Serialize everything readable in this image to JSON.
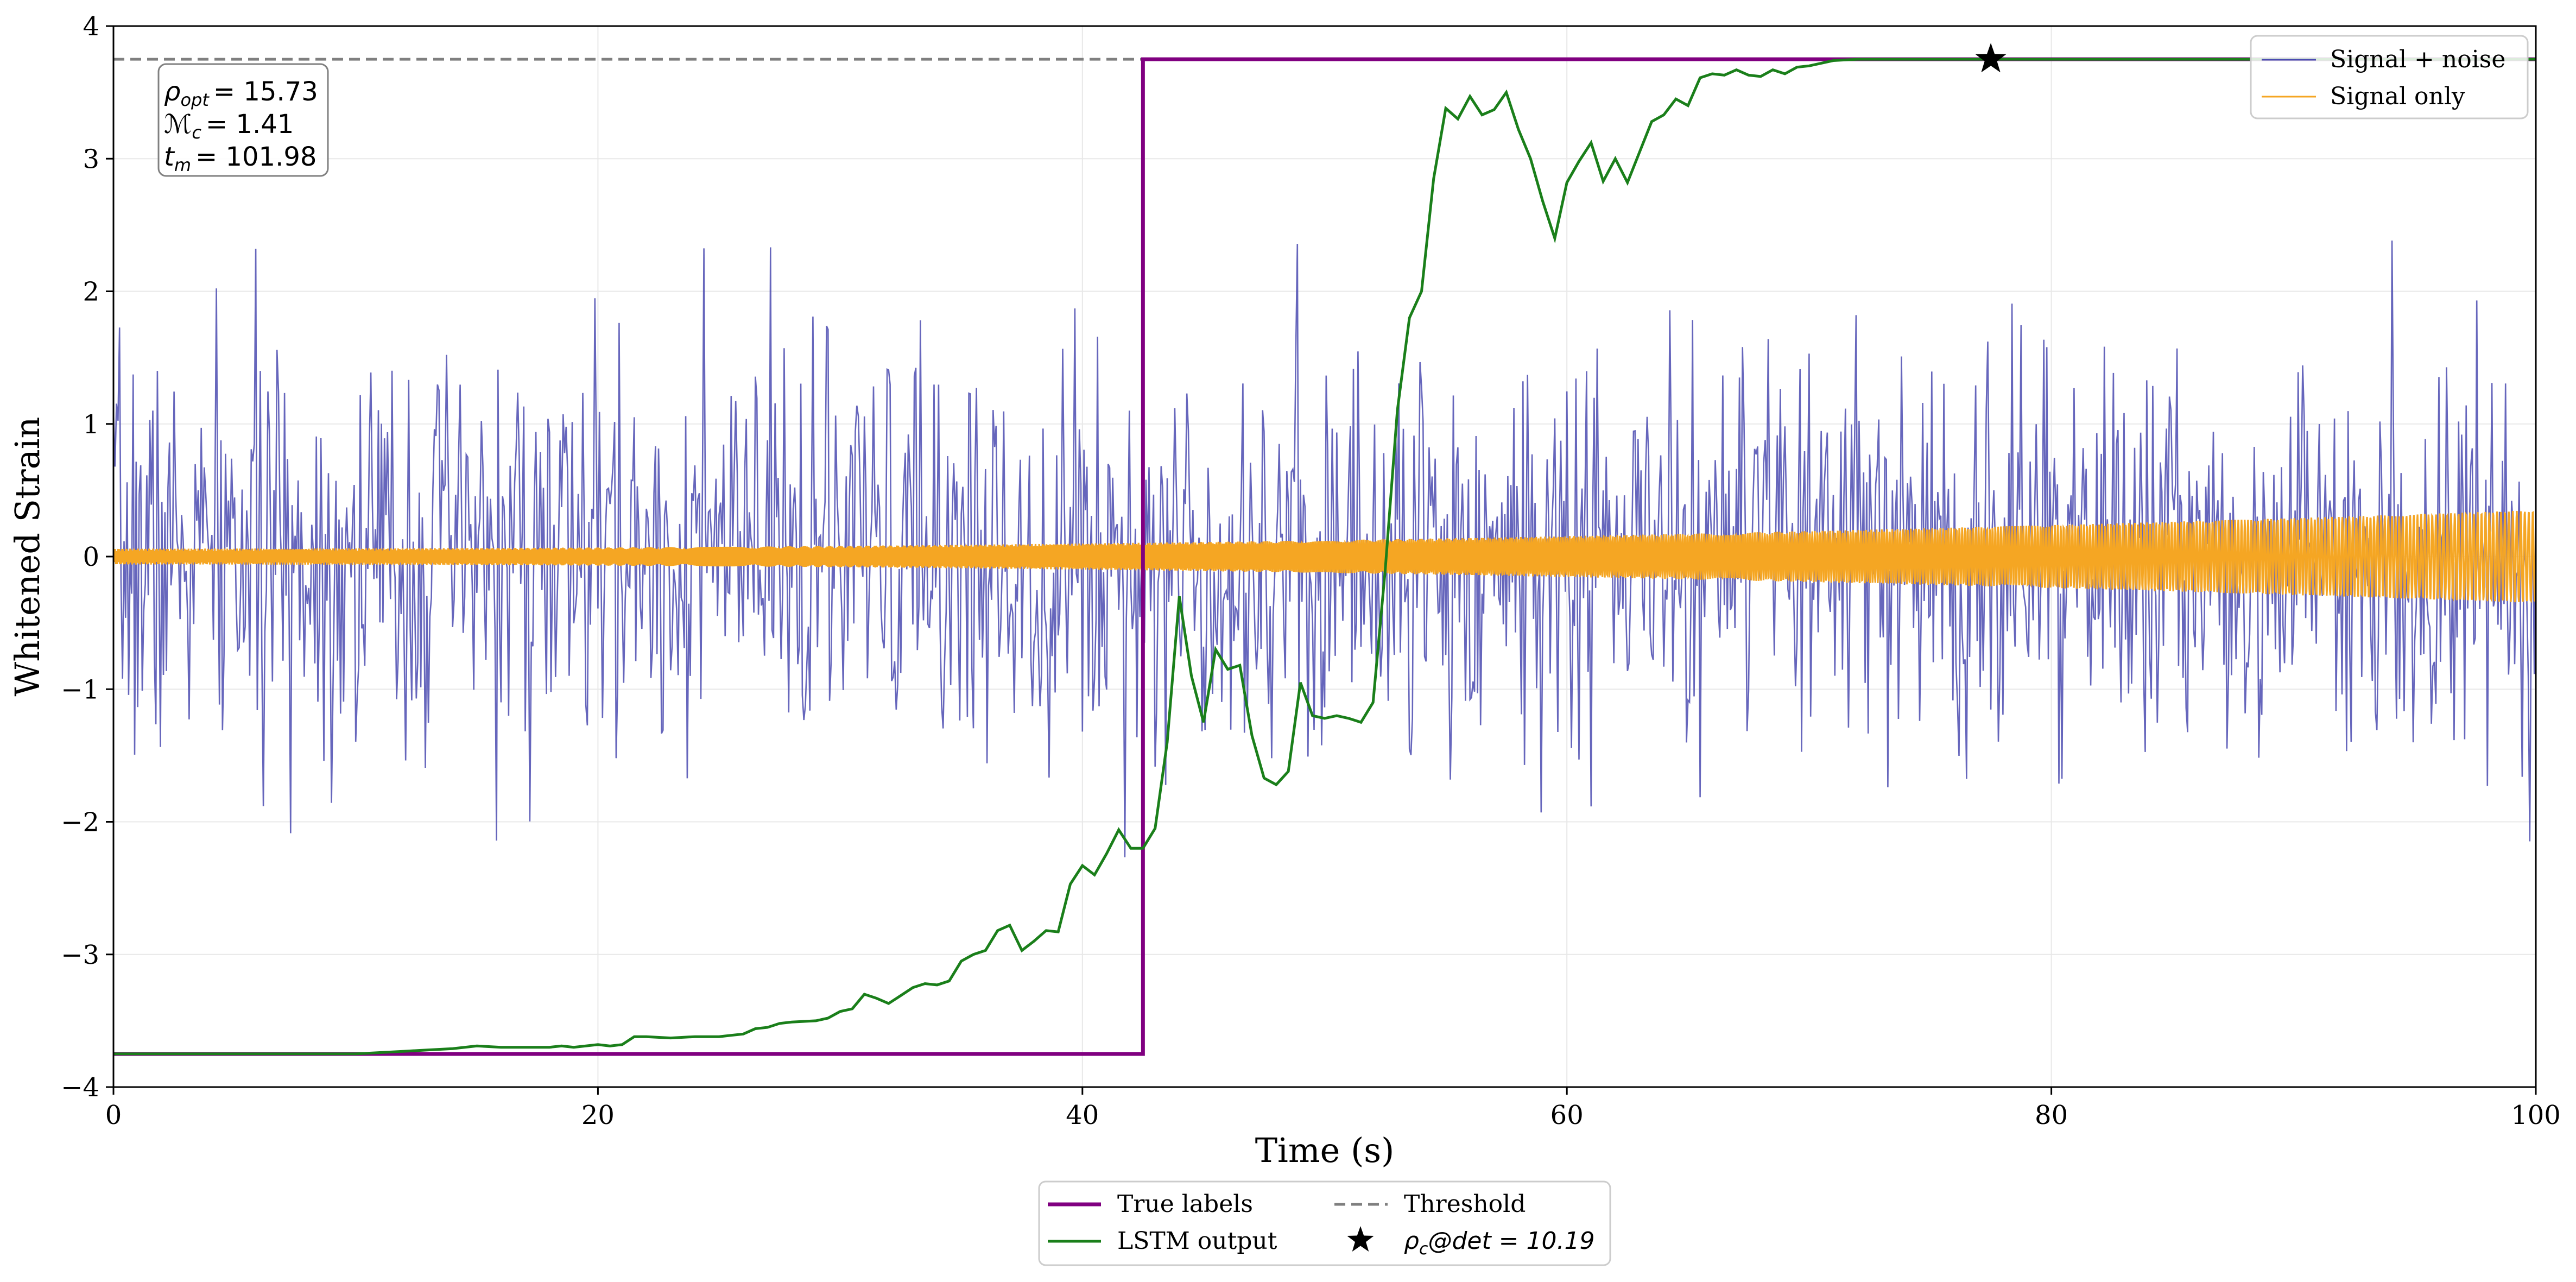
{
  "chart_data": {
    "type": "line",
    "title": "",
    "xlabel": "Time (s)",
    "ylabel": "Whitened Strain",
    "xlim": [
      0,
      100
    ],
    "ylim": [
      -4,
      4
    ],
    "x_ticks": [
      0,
      20,
      40,
      60,
      80,
      100
    ],
    "y_ticks": [
      -4,
      -3,
      -2,
      -1,
      0,
      1,
      2,
      3,
      4
    ],
    "x_tick_labels": [
      "0",
      "20",
      "40",
      "60",
      "80",
      "100"
    ],
    "y_tick_labels": [
      "−4",
      "−3",
      "−2",
      "−1",
      "0",
      "1",
      "2",
      "3",
      "4"
    ],
    "grid": true,
    "threshold": 3.75,
    "annotation": {
      "lines": [
        {
          "sym": "ρ",
          "sub": "opt",
          "value": "= 15.73"
        },
        {
          "sym": "ℳ",
          "sub": "c",
          "value": "= 1.41"
        },
        {
          "sym": "t",
          "sub": "m",
          "value": "= 101.98"
        }
      ]
    },
    "legend_top_right": [
      {
        "label": "Signal + noise",
        "color": "#4b4bb0"
      },
      {
        "label": "Signal only",
        "color": "#f5a623"
      }
    ],
    "legend_bottom": {
      "true_labels": "True labels",
      "threshold": "Threshold",
      "lstm": "LSTM output",
      "detection": {
        "sym": "ρ",
        "sub": "c",
        "rest": "@det = 10.19"
      }
    },
    "true_labels": {
      "points": [
        [
          0,
          -3.75
        ],
        [
          42.5,
          -3.75
        ],
        [
          42.5,
          3.75
        ],
        [
          100,
          3.75
        ]
      ],
      "color": "#800080"
    },
    "lstm_output": {
      "color": "#1a7f1a",
      "points": [
        [
          0,
          -3.75
        ],
        [
          5,
          -3.75
        ],
        [
          10,
          -3.75
        ],
        [
          11,
          -3.74
        ],
        [
          12,
          -3.73
        ],
        [
          13,
          -3.72
        ],
        [
          14,
          -3.71
        ],
        [
          15,
          -3.69
        ],
        [
          16,
          -3.7
        ],
        [
          17,
          -3.7
        ],
        [
          18,
          -3.7
        ],
        [
          18.5,
          -3.69
        ],
        [
          19,
          -3.7
        ],
        [
          20,
          -3.68
        ],
        [
          20.5,
          -3.69
        ],
        [
          21,
          -3.68
        ],
        [
          21.5,
          -3.62
        ],
        [
          22,
          -3.62
        ],
        [
          23,
          -3.63
        ],
        [
          24,
          -3.62
        ],
        [
          25,
          -3.62
        ],
        [
          25.5,
          -3.61
        ],
        [
          26,
          -3.6
        ],
        [
          26.5,
          -3.56
        ],
        [
          27,
          -3.55
        ],
        [
          27.5,
          -3.52
        ],
        [
          28,
          -3.51
        ],
        [
          29,
          -3.5
        ],
        [
          29.5,
          -3.48
        ],
        [
          30,
          -3.43
        ],
        [
          30.5,
          -3.41
        ],
        [
          31,
          -3.3
        ],
        [
          31.5,
          -3.33
        ],
        [
          32,
          -3.37
        ],
        [
          32.5,
          -3.31
        ],
        [
          33,
          -3.25
        ],
        [
          33.5,
          -3.22
        ],
        [
          34,
          -3.23
        ],
        [
          34.5,
          -3.2
        ],
        [
          35,
          -3.05
        ],
        [
          35.5,
          -3.0
        ],
        [
          36,
          -2.97
        ],
        [
          36.5,
          -2.82
        ],
        [
          37,
          -2.78
        ],
        [
          37.5,
          -2.97
        ],
        [
          38,
          -2.9
        ],
        [
          38.5,
          -2.82
        ],
        [
          39,
          -2.83
        ],
        [
          39.5,
          -2.47
        ],
        [
          40,
          -2.33
        ],
        [
          40.5,
          -2.4
        ],
        [
          41,
          -2.24
        ],
        [
          41.5,
          -2.06
        ],
        [
          42,
          -2.2
        ],
        [
          42.5,
          -2.2
        ],
        [
          43,
          -2.05
        ],
        [
          43.5,
          -1.4
        ],
        [
          44,
          -0.3
        ],
        [
          44.5,
          -0.9
        ],
        [
          45,
          -1.25
        ],
        [
          45.5,
          -0.7
        ],
        [
          46,
          -0.85
        ],
        [
          46.5,
          -0.82
        ],
        [
          47,
          -1.35
        ],
        [
          47.5,
          -1.67
        ],
        [
          48,
          -1.72
        ],
        [
          48.5,
          -1.62
        ],
        [
          49,
          -0.95
        ],
        [
          49.5,
          -1.2
        ],
        [
          50,
          -1.22
        ],
        [
          50.5,
          -1.2
        ],
        [
          51,
          -1.22
        ],
        [
          51.5,
          -1.25
        ],
        [
          52,
          -1.1
        ],
        [
          52.5,
          -0.1
        ],
        [
          53,
          1.1
        ],
        [
          53.5,
          1.8
        ],
        [
          54,
          2.0
        ],
        [
          54.5,
          2.85
        ],
        [
          55,
          3.38
        ],
        [
          55.5,
          3.3
        ],
        [
          56,
          3.47
        ],
        [
          56.5,
          3.33
        ],
        [
          57,
          3.37
        ],
        [
          57.5,
          3.5
        ],
        [
          58,
          3.22
        ],
        [
          58.5,
          3.0
        ],
        [
          59,
          2.68
        ],
        [
          59.5,
          2.4
        ],
        [
          60,
          2.82
        ],
        [
          60.5,
          2.98
        ],
        [
          61,
          3.12
        ],
        [
          61.5,
          2.83
        ],
        [
          62,
          3.0
        ],
        [
          62.5,
          2.82
        ],
        [
          63,
          3.05
        ],
        [
          63.5,
          3.28
        ],
        [
          64,
          3.33
        ],
        [
          64.5,
          3.45
        ],
        [
          65,
          3.4
        ],
        [
          65.5,
          3.61
        ],
        [
          66,
          3.64
        ],
        [
          66.5,
          3.63
        ],
        [
          67,
          3.67
        ],
        [
          67.5,
          3.63
        ],
        [
          68,
          3.62
        ],
        [
          68.5,
          3.67
        ],
        [
          69,
          3.64
        ],
        [
          69.5,
          3.69
        ],
        [
          70,
          3.7
        ],
        [
          70.5,
          3.72
        ],
        [
          71,
          3.74
        ],
        [
          72,
          3.75
        ],
        [
          100,
          3.75
        ]
      ]
    },
    "signal_noise": {
      "color": "#4b4bb0",
      "std": 0.75,
      "n_samples": 1600,
      "seed": 7
    },
    "signal_only": {
      "color": "#f5a623",
      "amplitude_start": 0.06,
      "amplitude_end": 0.35
    },
    "detection_marker": {
      "x": 77.5,
      "y": 3.75,
      "color": "#000000"
    }
  }
}
